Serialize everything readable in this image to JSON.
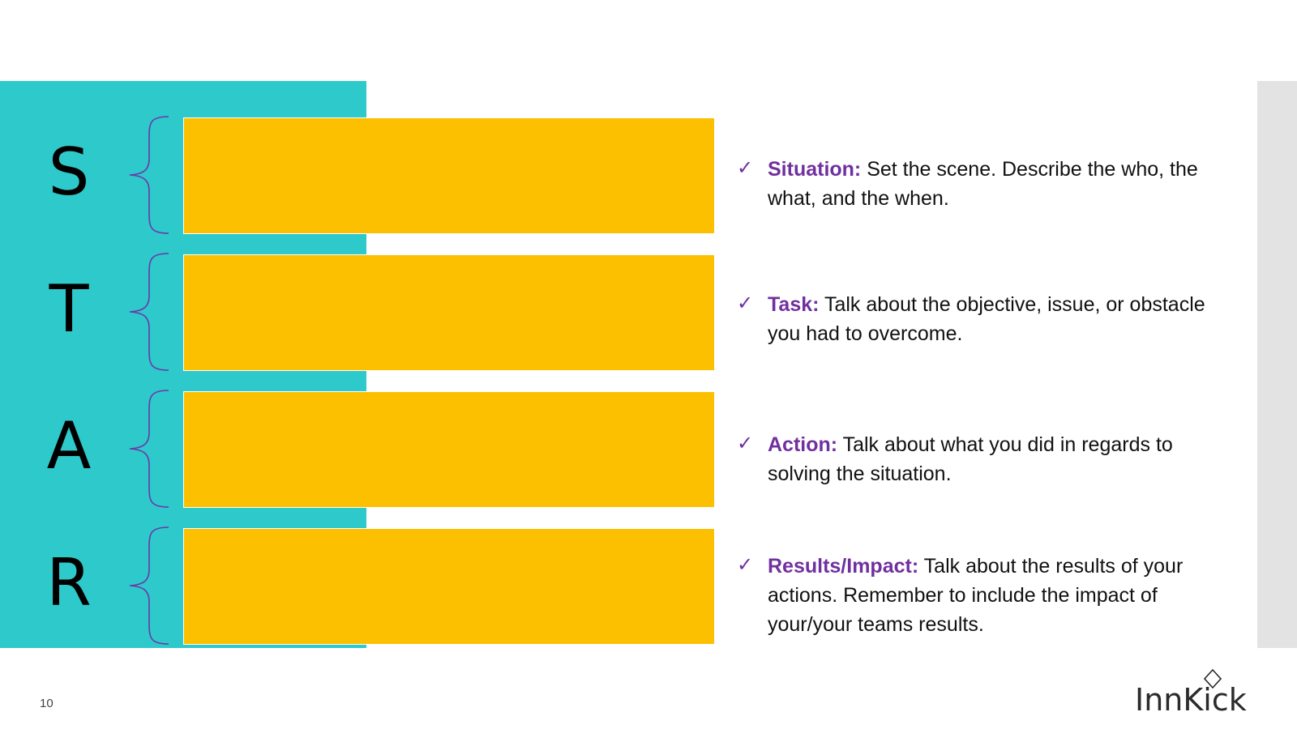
{
  "slide": {
    "page_number": "10",
    "colors": {
      "teal": "#2ec9cb",
      "bar": "#fcc000",
      "accent_purple": "#7030a0",
      "side_gray": "#e3e3e3"
    }
  },
  "letters": [
    "S",
    "T",
    "A",
    "R"
  ],
  "items": [
    {
      "label": "Situation:",
      "text": " Set the scene. Describe the who, the what, and the when."
    },
    {
      "label": "Task:",
      "text": " Talk about the objective, issue, or obstacle you had to overcome."
    },
    {
      "label": "Action:",
      "text": " Talk about what you did in regards to solving the situation."
    },
    {
      "label": "Results/Impact:",
      "text": " Talk about the results of your actions. Remember to include the impact of your/your teams results."
    }
  ],
  "check_symbol": "✓",
  "logo": {
    "text": "InnKick",
    "icon": "diamond-icon"
  }
}
